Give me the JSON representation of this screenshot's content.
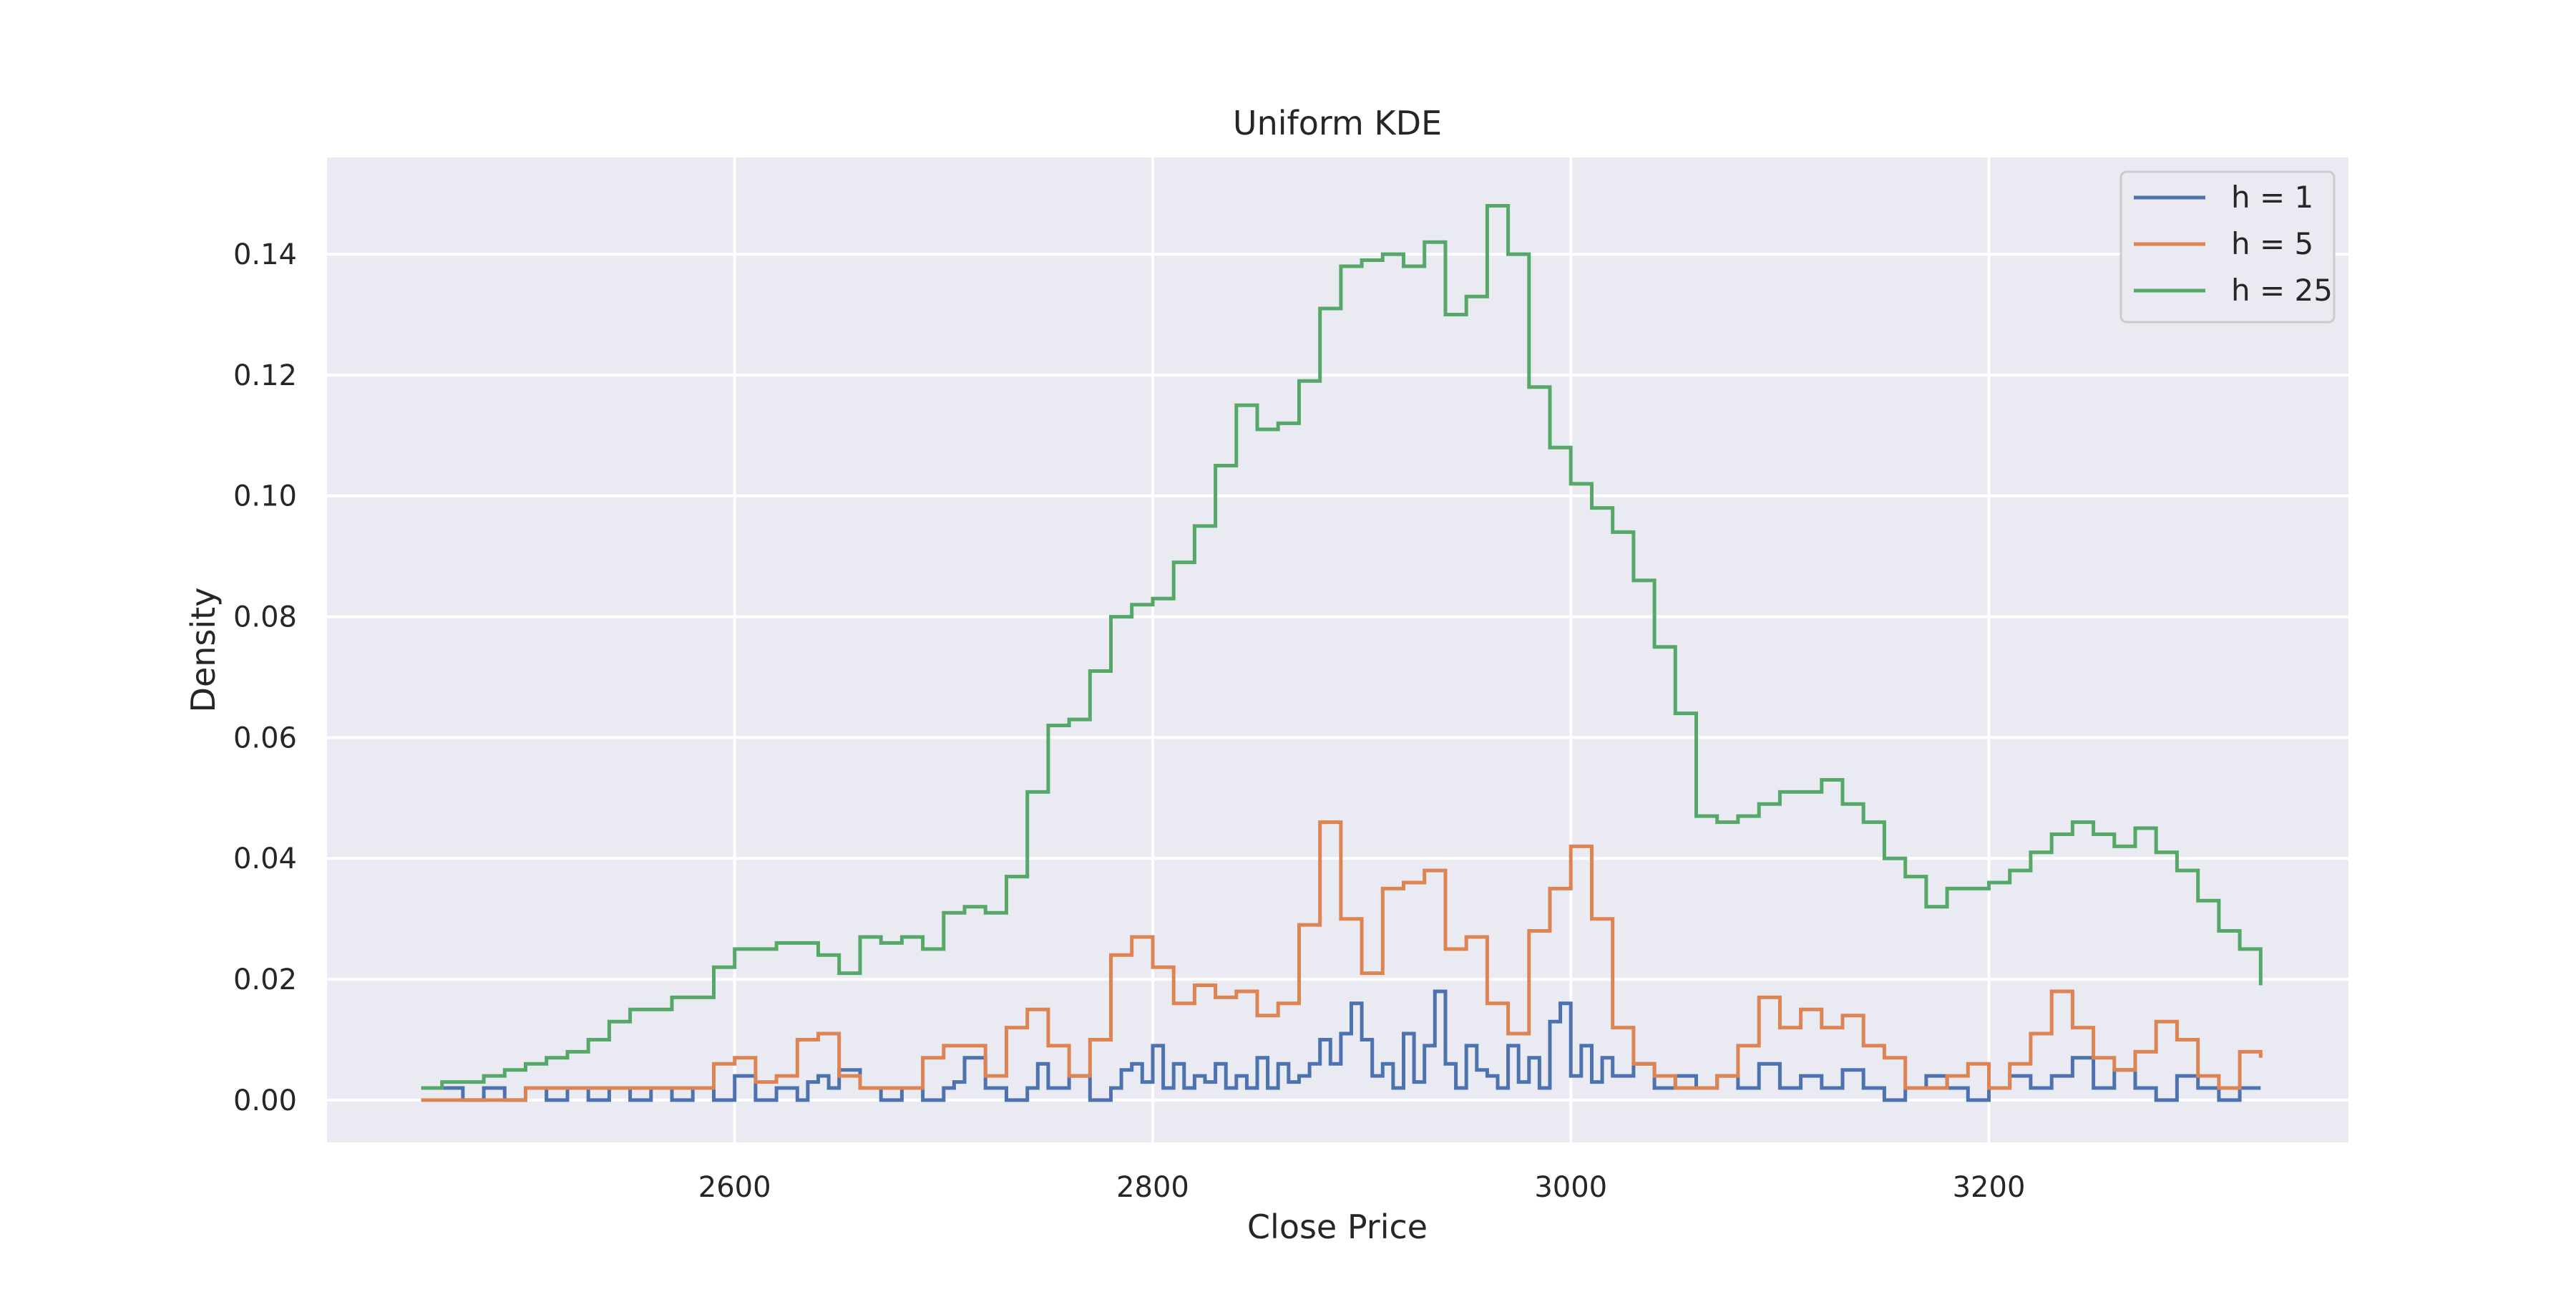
{
  "chart_data": {
    "type": "line",
    "title": "Uniform KDE",
    "xlabel": "Close Price",
    "ylabel": "Density",
    "xlim": [
      2405,
      3372
    ],
    "ylim": [
      -0.007,
      0.156
    ],
    "xticks": [
      2600,
      2800,
      3000,
      3200
    ],
    "xtick_labels": [
      "2600",
      "2800",
      "3000",
      "3200"
    ],
    "yticks": [
      0.0,
      0.02,
      0.04,
      0.06,
      0.08,
      0.1,
      0.12,
      0.14
    ],
    "ytick_labels": [
      "0.00",
      "0.02",
      "0.04",
      "0.06",
      "0.08",
      "0.10",
      "0.12",
      "0.14"
    ],
    "grid": true,
    "legend_position": "top-right",
    "colors": {
      "background": "#EAEAF2",
      "grid": "#FFFFFF"
    },
    "series": [
      {
        "name": "h = 1",
        "color": "#4C72B0",
        "x": [
          2450,
          2460,
          2470,
          2480,
          2490,
          2500,
          2510,
          2520,
          2530,
          2540,
          2550,
          2560,
          2570,
          2580,
          2590,
          2600,
          2610,
          2620,
          2630,
          2635,
          2640,
          2645,
          2650,
          2660,
          2670,
          2680,
          2690,
          2700,
          2705,
          2710,
          2720,
          2730,
          2740,
          2745,
          2750,
          2760,
          2770,
          2780,
          2785,
          2790,
          2795,
          2800,
          2805,
          2810,
          2815,
          2820,
          2825,
          2830,
          2835,
          2840,
          2845,
          2850,
          2855,
          2860,
          2865,
          2870,
          2875,
          2880,
          2885,
          2890,
          2895,
          2900,
          2905,
          2910,
          2915,
          2920,
          2925,
          2930,
          2935,
          2940,
          2945,
          2950,
          2955,
          2960,
          2965,
          2970,
          2975,
          2980,
          2985,
          2990,
          2995,
          3000,
          3005,
          3010,
          3015,
          3020,
          3030,
          3040,
          3050,
          3060,
          3070,
          3080,
          3090,
          3100,
          3110,
          3120,
          3130,
          3140,
          3150,
          3160,
          3170,
          3180,
          3190,
          3200,
          3210,
          3220,
          3230,
          3240,
          3250,
          3260,
          3270,
          3280,
          3290,
          3300,
          3310,
          3320,
          3330
        ],
        "y": [
          0.002,
          0.002,
          0.0,
          0.002,
          0.0,
          0.002,
          0.0,
          0.002,
          0.0,
          0.002,
          0.0,
          0.002,
          0.0,
          0.002,
          0.0,
          0.004,
          0.0,
          0.002,
          0.0,
          0.003,
          0.004,
          0.002,
          0.005,
          0.002,
          0.0,
          0.002,
          0.0,
          0.002,
          0.003,
          0.007,
          0.002,
          0.0,
          0.002,
          0.006,
          0.002,
          0.004,
          0.0,
          0.002,
          0.005,
          0.006,
          0.003,
          0.009,
          0.002,
          0.006,
          0.002,
          0.004,
          0.003,
          0.006,
          0.002,
          0.004,
          0.002,
          0.007,
          0.002,
          0.006,
          0.003,
          0.004,
          0.006,
          0.01,
          0.006,
          0.011,
          0.016,
          0.01,
          0.004,
          0.006,
          0.002,
          0.011,
          0.003,
          0.009,
          0.018,
          0.006,
          0.002,
          0.009,
          0.005,
          0.004,
          0.002,
          0.009,
          0.003,
          0.007,
          0.002,
          0.013,
          0.016,
          0.004,
          0.009,
          0.003,
          0.007,
          0.004,
          0.006,
          0.002,
          0.004,
          0.002,
          0.004,
          0.002,
          0.006,
          0.002,
          0.004,
          0.002,
          0.005,
          0.002,
          0.0,
          0.002,
          0.004,
          0.002,
          0.0,
          0.002,
          0.004,
          0.002,
          0.004,
          0.007,
          0.002,
          0.005,
          0.002,
          0.0,
          0.004,
          0.002,
          0.0,
          0.002,
          0.002
        ],
        "step": true
      },
      {
        "name": "h = 5",
        "color": "#DD8452",
        "x": [
          2450,
          2460,
          2480,
          2500,
          2510,
          2530,
          2550,
          2570,
          2580,
          2590,
          2600,
          2610,
          2620,
          2630,
          2640,
          2650,
          2660,
          2670,
          2680,
          2690,
          2700,
          2710,
          2720,
          2730,
          2740,
          2750,
          2760,
          2770,
          2780,
          2790,
          2800,
          2810,
          2820,
          2830,
          2840,
          2850,
          2860,
          2870,
          2880,
          2890,
          2900,
          2910,
          2920,
          2930,
          2940,
          2950,
          2960,
          2970,
          2980,
          2990,
          3000,
          3010,
          3020,
          3030,
          3040,
          3050,
          3060,
          3070,
          3080,
          3090,
          3100,
          3110,
          3120,
          3130,
          3140,
          3150,
          3160,
          3170,
          3180,
          3190,
          3200,
          3210,
          3220,
          3230,
          3240,
          3250,
          3260,
          3270,
          3280,
          3290,
          3300,
          3310,
          3320,
          3330
        ],
        "y": [
          0.0,
          0.0,
          0.0,
          0.002,
          0.002,
          0.002,
          0.002,
          0.002,
          0.002,
          0.006,
          0.007,
          0.003,
          0.004,
          0.01,
          0.011,
          0.004,
          0.002,
          0.002,
          0.002,
          0.007,
          0.009,
          0.009,
          0.004,
          0.012,
          0.015,
          0.009,
          0.004,
          0.01,
          0.024,
          0.027,
          0.022,
          0.016,
          0.019,
          0.017,
          0.018,
          0.014,
          0.016,
          0.029,
          0.046,
          0.03,
          0.021,
          0.035,
          0.036,
          0.038,
          0.025,
          0.027,
          0.016,
          0.011,
          0.028,
          0.035,
          0.042,
          0.03,
          0.012,
          0.006,
          0.004,
          0.002,
          0.002,
          0.004,
          0.009,
          0.017,
          0.012,
          0.015,
          0.012,
          0.014,
          0.009,
          0.007,
          0.002,
          0.002,
          0.004,
          0.006,
          0.002,
          0.006,
          0.011,
          0.018,
          0.012,
          0.007,
          0.005,
          0.008,
          0.013,
          0.01,
          0.004,
          0.002,
          0.008,
          0.007
        ],
        "step": true
      },
      {
        "name": "h = 25",
        "color": "#55A868",
        "x": [
          2450,
          2460,
          2470,
          2480,
          2490,
          2500,
          2510,
          2520,
          2530,
          2540,
          2550,
          2560,
          2570,
          2580,
          2590,
          2600,
          2610,
          2620,
          2630,
          2640,
          2650,
          2660,
          2670,
          2680,
          2690,
          2700,
          2710,
          2720,
          2730,
          2740,
          2750,
          2760,
          2770,
          2780,
          2790,
          2800,
          2810,
          2820,
          2830,
          2840,
          2850,
          2860,
          2870,
          2880,
          2890,
          2900,
          2910,
          2920,
          2930,
          2940,
          2950,
          2960,
          2970,
          2980,
          2990,
          3000,
          3010,
          3020,
          3030,
          3040,
          3050,
          3060,
          3070,
          3080,
          3090,
          3100,
          3110,
          3120,
          3130,
          3140,
          3150,
          3160,
          3170,
          3180,
          3190,
          3200,
          3210,
          3220,
          3230,
          3240,
          3250,
          3260,
          3270,
          3280,
          3290,
          3300,
          3310,
          3320,
          3330
        ],
        "y": [
          0.002,
          0.003,
          0.003,
          0.004,
          0.005,
          0.006,
          0.007,
          0.008,
          0.01,
          0.013,
          0.015,
          0.015,
          0.017,
          0.017,
          0.022,
          0.025,
          0.025,
          0.026,
          0.026,
          0.024,
          0.021,
          0.027,
          0.026,
          0.027,
          0.025,
          0.031,
          0.032,
          0.031,
          0.037,
          0.051,
          0.062,
          0.063,
          0.071,
          0.08,
          0.082,
          0.083,
          0.089,
          0.095,
          0.105,
          0.115,
          0.111,
          0.112,
          0.119,
          0.131,
          0.138,
          0.139,
          0.14,
          0.138,
          0.142,
          0.13,
          0.133,
          0.148,
          0.14,
          0.118,
          0.108,
          0.102,
          0.098,
          0.094,
          0.086,
          0.075,
          0.064,
          0.047,
          0.046,
          0.047,
          0.049,
          0.051,
          0.051,
          0.053,
          0.049,
          0.046,
          0.04,
          0.037,
          0.032,
          0.035,
          0.035,
          0.036,
          0.038,
          0.041,
          0.044,
          0.046,
          0.044,
          0.042,
          0.045,
          0.041,
          0.038,
          0.033,
          0.028,
          0.025,
          0.019
        ],
        "step": true
      }
    ]
  }
}
